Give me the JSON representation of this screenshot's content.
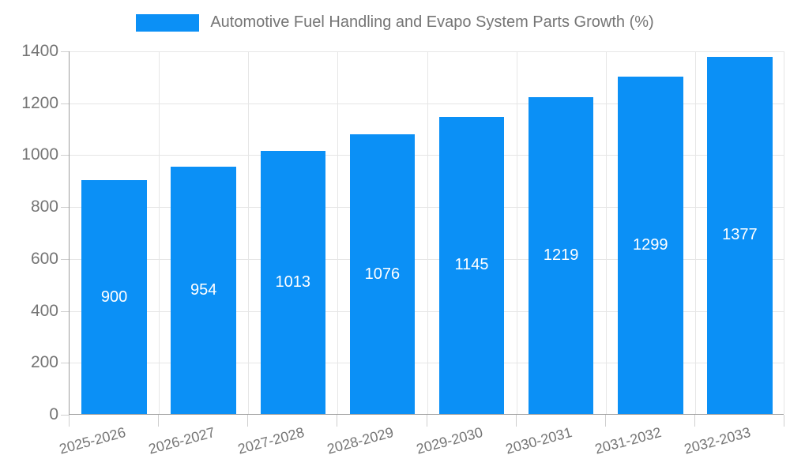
{
  "chart_data": {
    "type": "bar",
    "title": "Automotive Fuel Handling and Evapo System Parts Growth (%)",
    "categories": [
      "2025-2026",
      "2026-2027",
      "2027-2028",
      "2028-2029",
      "2029-2030",
      "2030-2031",
      "2031-2032",
      "2032-2033"
    ],
    "values": [
      900,
      954,
      1013,
      1076,
      1145,
      1219,
      1299,
      1377
    ],
    "bar_labels": [
      "900",
      "954",
      "1013",
      "1076",
      "1145",
      "1219",
      "1299",
      "1377"
    ],
    "xlabel": "",
    "ylabel": "",
    "ylim": [
      0,
      1400
    ],
    "yticks": [
      0,
      200,
      400,
      600,
      800,
      1000,
      1200,
      1400
    ],
    "grid": true,
    "legend_position": "top-center",
    "x_label_rotation_deg": -15,
    "colors": {
      "bar": "#0b90f6",
      "barlabel": "#ffffff",
      "text": "#757575",
      "grid": "#e6e6e6",
      "axis": "#9e9e9e",
      "tick": "#cfcfcf"
    }
  }
}
